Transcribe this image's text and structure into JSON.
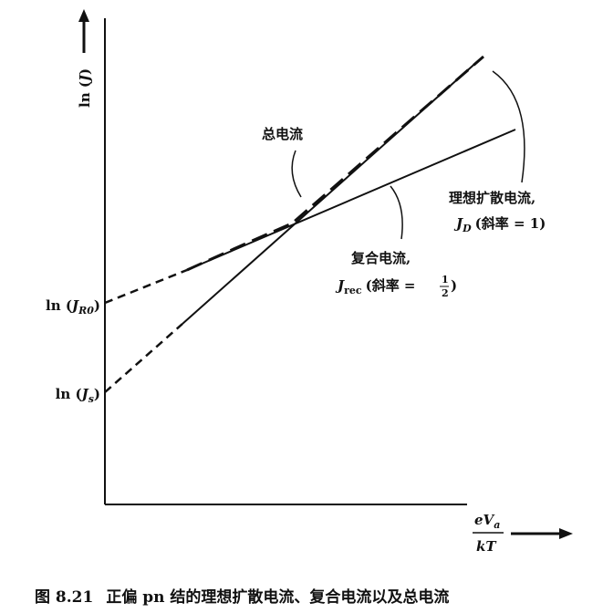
{
  "y_axis_label": {
    "prefix": "ln (",
    "var": "J",
    "suffix": ")"
  },
  "x_axis_label": {
    "numerator": "eV",
    "numerator_sub": "a",
    "denominator": "kT"
  },
  "y_marks": [
    {
      "prefix": "ln (",
      "var": "J",
      "sub": "R0",
      "suffix": ")"
    },
    {
      "prefix": "ln (",
      "var": "J",
      "sub": "s",
      "suffix": ")"
    }
  ],
  "curves": {
    "total": {
      "label": "总电流"
    },
    "diffusion": {
      "label": "理想扩散电流,",
      "var": "J",
      "sub": "D",
      "slope": "(斜率 = 1)"
    },
    "recombination": {
      "label": "复合电流,",
      "var": "J",
      "sub": "rec",
      "slope_prefix": "(斜率 =",
      "slope_num": "1",
      "slope_den": "2",
      "slope_suffix": ")"
    }
  },
  "caption": {
    "number": "图 8.21",
    "text": "正偏 pn 结的理想扩散电流、复合电流以及总电流"
  }
}
